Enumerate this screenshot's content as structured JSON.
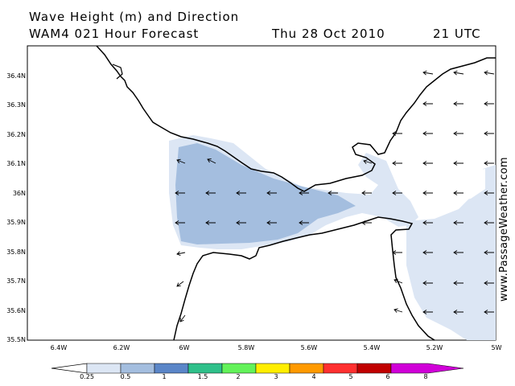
{
  "header": {
    "title": "Wave Height (m) and Direction",
    "model": "WAM4 021 Hour Forecast",
    "date": "Thu 28 Oct 2010",
    "time": "21 UTC"
  },
  "axes": {
    "lat_labels": [
      "36.4N",
      "36.3N",
      "36.2N",
      "36.1N",
      "36N",
      "35.9N",
      "35.8N",
      "35.7N",
      "35.6N",
      "35.5N"
    ],
    "lon_labels": [
      "6.4W",
      "6.2W",
      "6W",
      "5.8W",
      "5.6W",
      "5.4W",
      "5.2W",
      "5W"
    ]
  },
  "colorbar": {
    "labels": [
      "0.25",
      "0.5",
      "1",
      "1.5",
      "2",
      "3",
      "4",
      "5",
      "6",
      "8"
    ],
    "colors": [
      "#ffffff",
      "#dce6f4",
      "#a4bedf",
      "#5b86c8",
      "#2fc08a",
      "#63f25a",
      "#ffee00",
      "#ff9a00",
      "#ff3030",
      "#c00000",
      "#d000d8"
    ]
  },
  "credit": "www.PassageWeather.com",
  "colors": {
    "land_line": "#000000",
    "wave_low": "#dce6f4",
    "wave_mid": "#a4bedf"
  }
}
